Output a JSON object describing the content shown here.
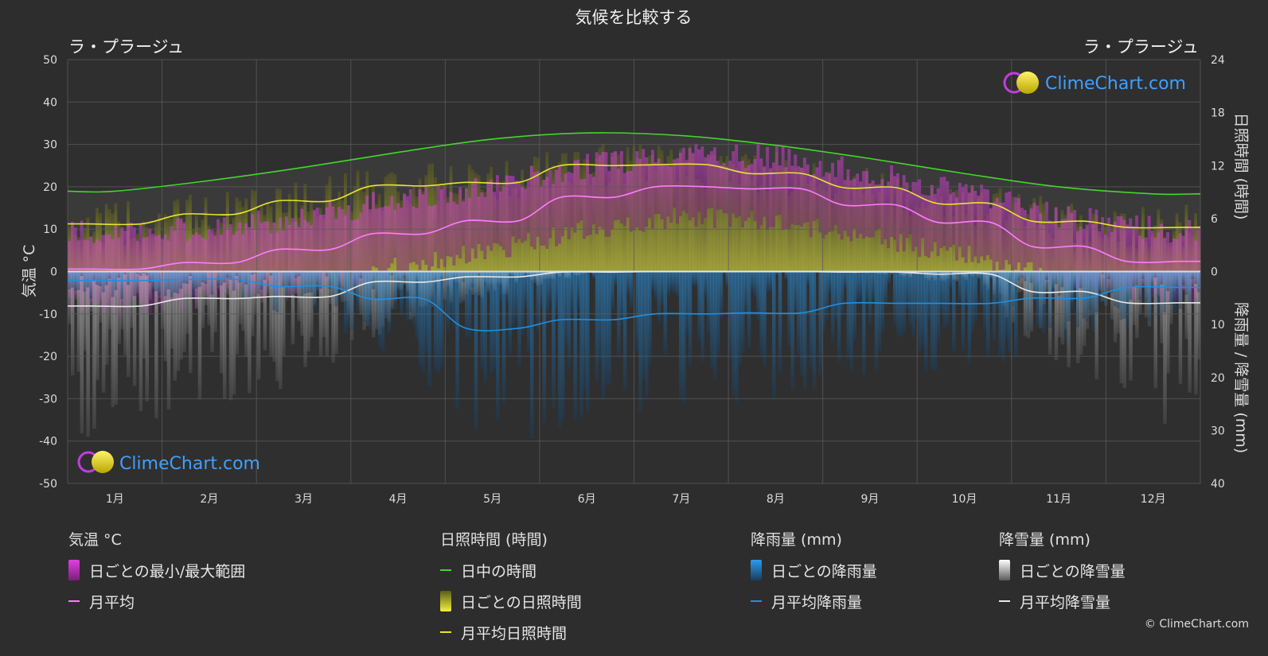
{
  "header": {
    "title": "気候を比較する"
  },
  "location_left": "ラ・プラージュ",
  "location_right": "ラ・プラージュ",
  "watermark": {
    "text": "ClimeChart.com"
  },
  "copyright": "© ClimeChart.com",
  "legend": {
    "temperature": {
      "title": "気温 °C",
      "items": [
        "日ごとの最小/最大範囲",
        "月平均"
      ]
    },
    "sunshine": {
      "title": "日照時間 (時間)",
      "items": [
        "日中の時間",
        "日ごとの日照時間",
        "月平均日照時間"
      ]
    },
    "rain": {
      "title": "降雨量 (mm)",
      "items": [
        "日ごとの降雨量",
        "月平均降雨量"
      ]
    },
    "snow": {
      "title": "降雪量 (mm)",
      "items": [
        "日ごとの降雪量",
        "月平均降雪量"
      ]
    }
  },
  "colors": {
    "background": "#2d2d2d",
    "daylight": "#44d62c",
    "sunshine": "#e6e62e",
    "temp_avg": "#ff7bff",
    "temp_range": "#d83ccd",
    "rain": "#1f90e0",
    "snow": "#e8e8e8"
  },
  "chart_data": {
    "type": "line",
    "categories": [
      "1月",
      "2月",
      "3月",
      "4月",
      "5月",
      "6月",
      "7月",
      "8月",
      "9月",
      "10月",
      "11月",
      "12月"
    ],
    "y_left": {
      "label": "気温 °C",
      "ylim": [
        -50,
        50
      ],
      "ticks": [
        50,
        40,
        30,
        20,
        10,
        0,
        -10,
        -20,
        -30,
        -40,
        -50
      ]
    },
    "y_right_top": {
      "label": "日照時間 (時間)",
      "ylim": [
        0,
        24
      ],
      "ticks": [
        24,
        18,
        12,
        6,
        0
      ]
    },
    "y_right_bottom": {
      "label": "降雨量 / 降雪量 (mm)",
      "ylim": [
        0,
        40
      ],
      "ticks": [
        0,
        10,
        20,
        30,
        40
      ]
    },
    "grid": true,
    "series": [
      {
        "name": "日中の時間",
        "axis": "sunshine_hours",
        "values": [
          9.1,
          10.3,
          11.8,
          13.5,
          15.0,
          15.7,
          15.4,
          14.3,
          12.8,
          11.1,
          9.6,
          8.8
        ]
      },
      {
        "name": "月平均日照時間",
        "axis": "sunshine_hours",
        "values": [
          5.4,
          6.5,
          8.0,
          9.7,
          10.1,
          12.0,
          12.1,
          11.1,
          9.5,
          7.7,
          5.7,
          5.0
        ]
      },
      {
        "name": "月平均",
        "axis": "temperature_c",
        "values": [
          0.6,
          2.1,
          5.2,
          8.9,
          12.0,
          17.5,
          20.0,
          19.5,
          15.7,
          11.6,
          5.9,
          2.4
        ]
      },
      {
        "name": "月平均降雨量",
        "axis": "precip_mm",
        "values": [
          1.7,
          1.5,
          2.8,
          5.2,
          10.7,
          9.1,
          8.0,
          7.8,
          6.0,
          6.0,
          5.0,
          3.0
        ]
      },
      {
        "name": "月平均降雪量",
        "axis": "precip_mm",
        "values": [
          6.5,
          5.1,
          4.7,
          2.0,
          1.0,
          0.1,
          0.0,
          0.0,
          0.1,
          0.5,
          3.8,
          5.9
        ]
      }
    ],
    "daily_temp_range": {
      "name": "日ごとの最小/最大範囲",
      "monthly_min": [
        -8,
        -6,
        -3,
        1,
        5,
        10,
        13,
        12,
        8,
        4,
        -2,
        -5
      ],
      "monthly_max": [
        9,
        10,
        13,
        17,
        20,
        25,
        28,
        27,
        23,
        19,
        13,
        10
      ]
    }
  }
}
